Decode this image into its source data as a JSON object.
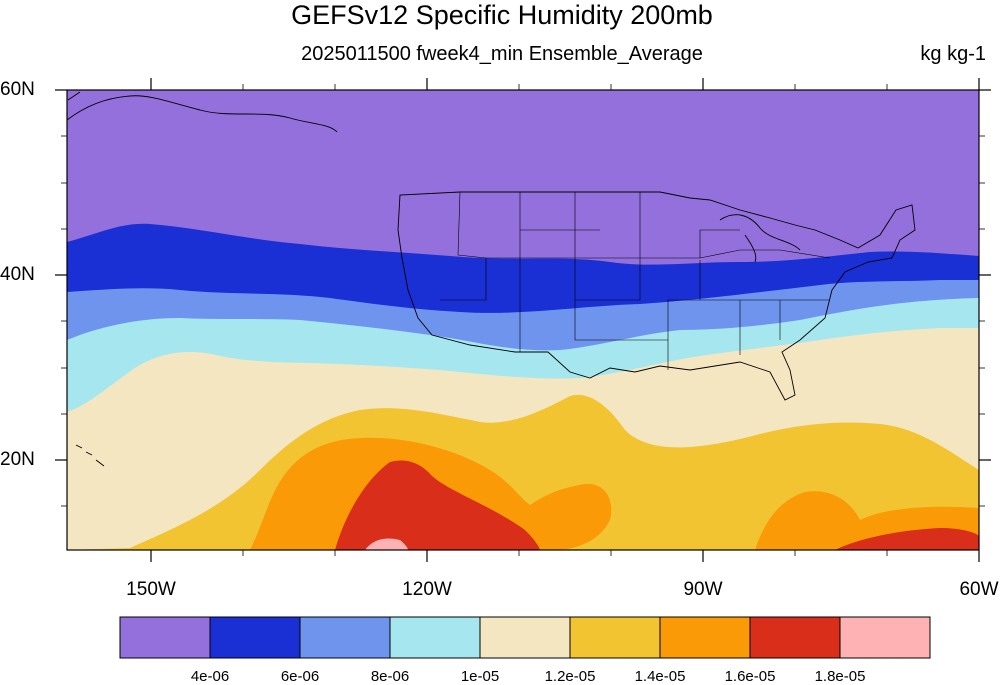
{
  "title": "GEFSv12 Specific Humidity 200mb",
  "subtitle": "2025011500 fweek4_min Ensemble_Average",
  "units": "kg kg-1",
  "lat_labels": [
    "60N",
    "40N",
    "20N"
  ],
  "lon_labels": [
    "150W",
    "120W",
    "90W",
    "60W"
  ],
  "colorbar": {
    "colors": [
      "#9370db",
      "#1a2fd4",
      "#6f94ee",
      "#a6e6ee",
      "#f5e6c2",
      "#f3c431",
      "#fa9a06",
      "#d82e1a",
      "#ffb2b4"
    ],
    "labels": [
      "4e-06",
      "6e-06",
      "8e-06",
      "1e-05",
      "1.2e-05",
      "1.4e-05",
      "1.6e-05",
      "1.8e-05"
    ]
  },
  "map_colors": {
    "missing": "#d3d3d3",
    "coast": "#000000"
  }
}
